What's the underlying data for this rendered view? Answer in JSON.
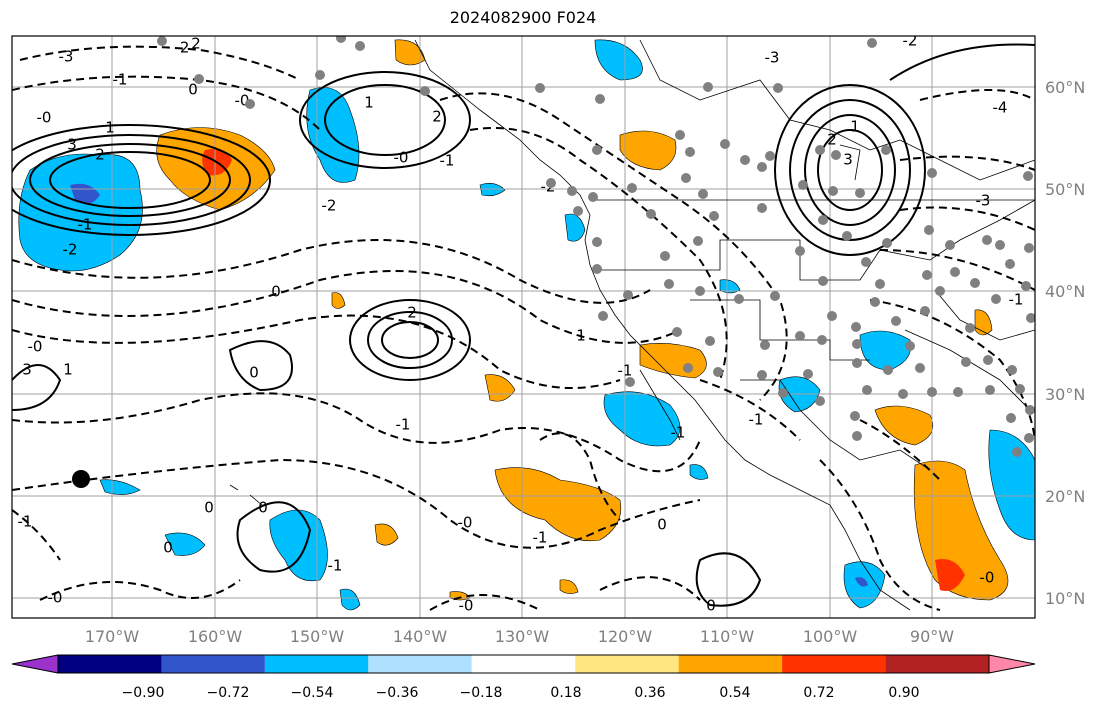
{
  "title": "2024082900 F024",
  "lat_labels": [
    "60°N",
    "50°N",
    "40°N",
    "30°N",
    "20°N",
    "10°N"
  ],
  "lon_labels": [
    "170°W",
    "160°W",
    "150°W",
    "140°W",
    "130°W",
    "120°W",
    "110°W",
    "100°W",
    "90°W"
  ],
  "colorbar": {
    "ticks": [
      "−0.90",
      "−0.72",
      "−0.54",
      "−0.36",
      "−0.18",
      "0.18",
      "0.36",
      "0.54",
      "0.72",
      "0.90"
    ],
    "colors": [
      "#9933cc",
      "#000080",
      "#3355cc",
      "#00bfff",
      "#b0e0ff",
      "#ffffff",
      "#ffe680",
      "#ffa500",
      "#ff3300",
      "#b22222",
      "#ff88aa"
    ]
  },
  "contour_labels": [
    "-3",
    "-2",
    "-1",
    "0",
    "-0",
    "3",
    "2",
    "1",
    "-2",
    "-1",
    "0",
    "-0",
    "3",
    "-2",
    "2",
    "-0",
    "-1",
    "0",
    "2",
    "-1",
    "1",
    "1",
    "-2",
    "-0",
    "-1",
    "-1",
    "0",
    "-1",
    "1",
    "0",
    "-1",
    "0",
    "0",
    "-0",
    "-0",
    "-1",
    "-0",
    "-1",
    "0",
    "-3",
    "-2",
    "-4",
    "2",
    "-3",
    "1",
    "-0",
    "-1",
    "2",
    "3"
  ]
}
